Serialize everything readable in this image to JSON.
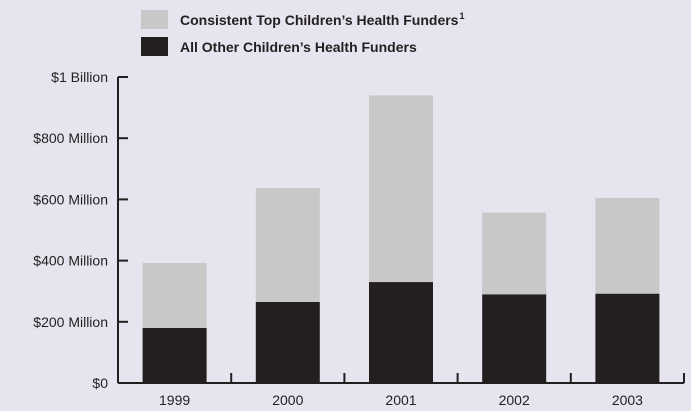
{
  "chart_data": {
    "type": "bar",
    "stacked": true,
    "categories": [
      "1999",
      "2000",
      "2001",
      "2002",
      "2003"
    ],
    "series": [
      {
        "name": "All Other Children’s Health Funders",
        "color": "#231f20",
        "values": [
          180,
          265,
          330,
          290,
          292
        ]
      },
      {
        "name": "Consistent Top Children’s Health Funders",
        "name_superscript": "1",
        "color": "#c8c8c8",
        "values": [
          212,
          372,
          610,
          267,
          313
        ]
      }
    ],
    "y_tick_values": [
      0,
      200,
      400,
      600,
      800,
      1000
    ],
    "y_tick_labels": [
      "$0",
      "$200 Million",
      "$400 Million",
      "$600 Million",
      "$800 Million",
      "$1 Billion"
    ],
    "ylim": [
      0,
      1000
    ],
    "title": "",
    "xlabel": "",
    "ylabel": "",
    "legend_position": "top-left",
    "legend_order": [
      1,
      0
    ],
    "grid": false,
    "background": "#e6e4ee",
    "axis_color": "#231f20"
  }
}
